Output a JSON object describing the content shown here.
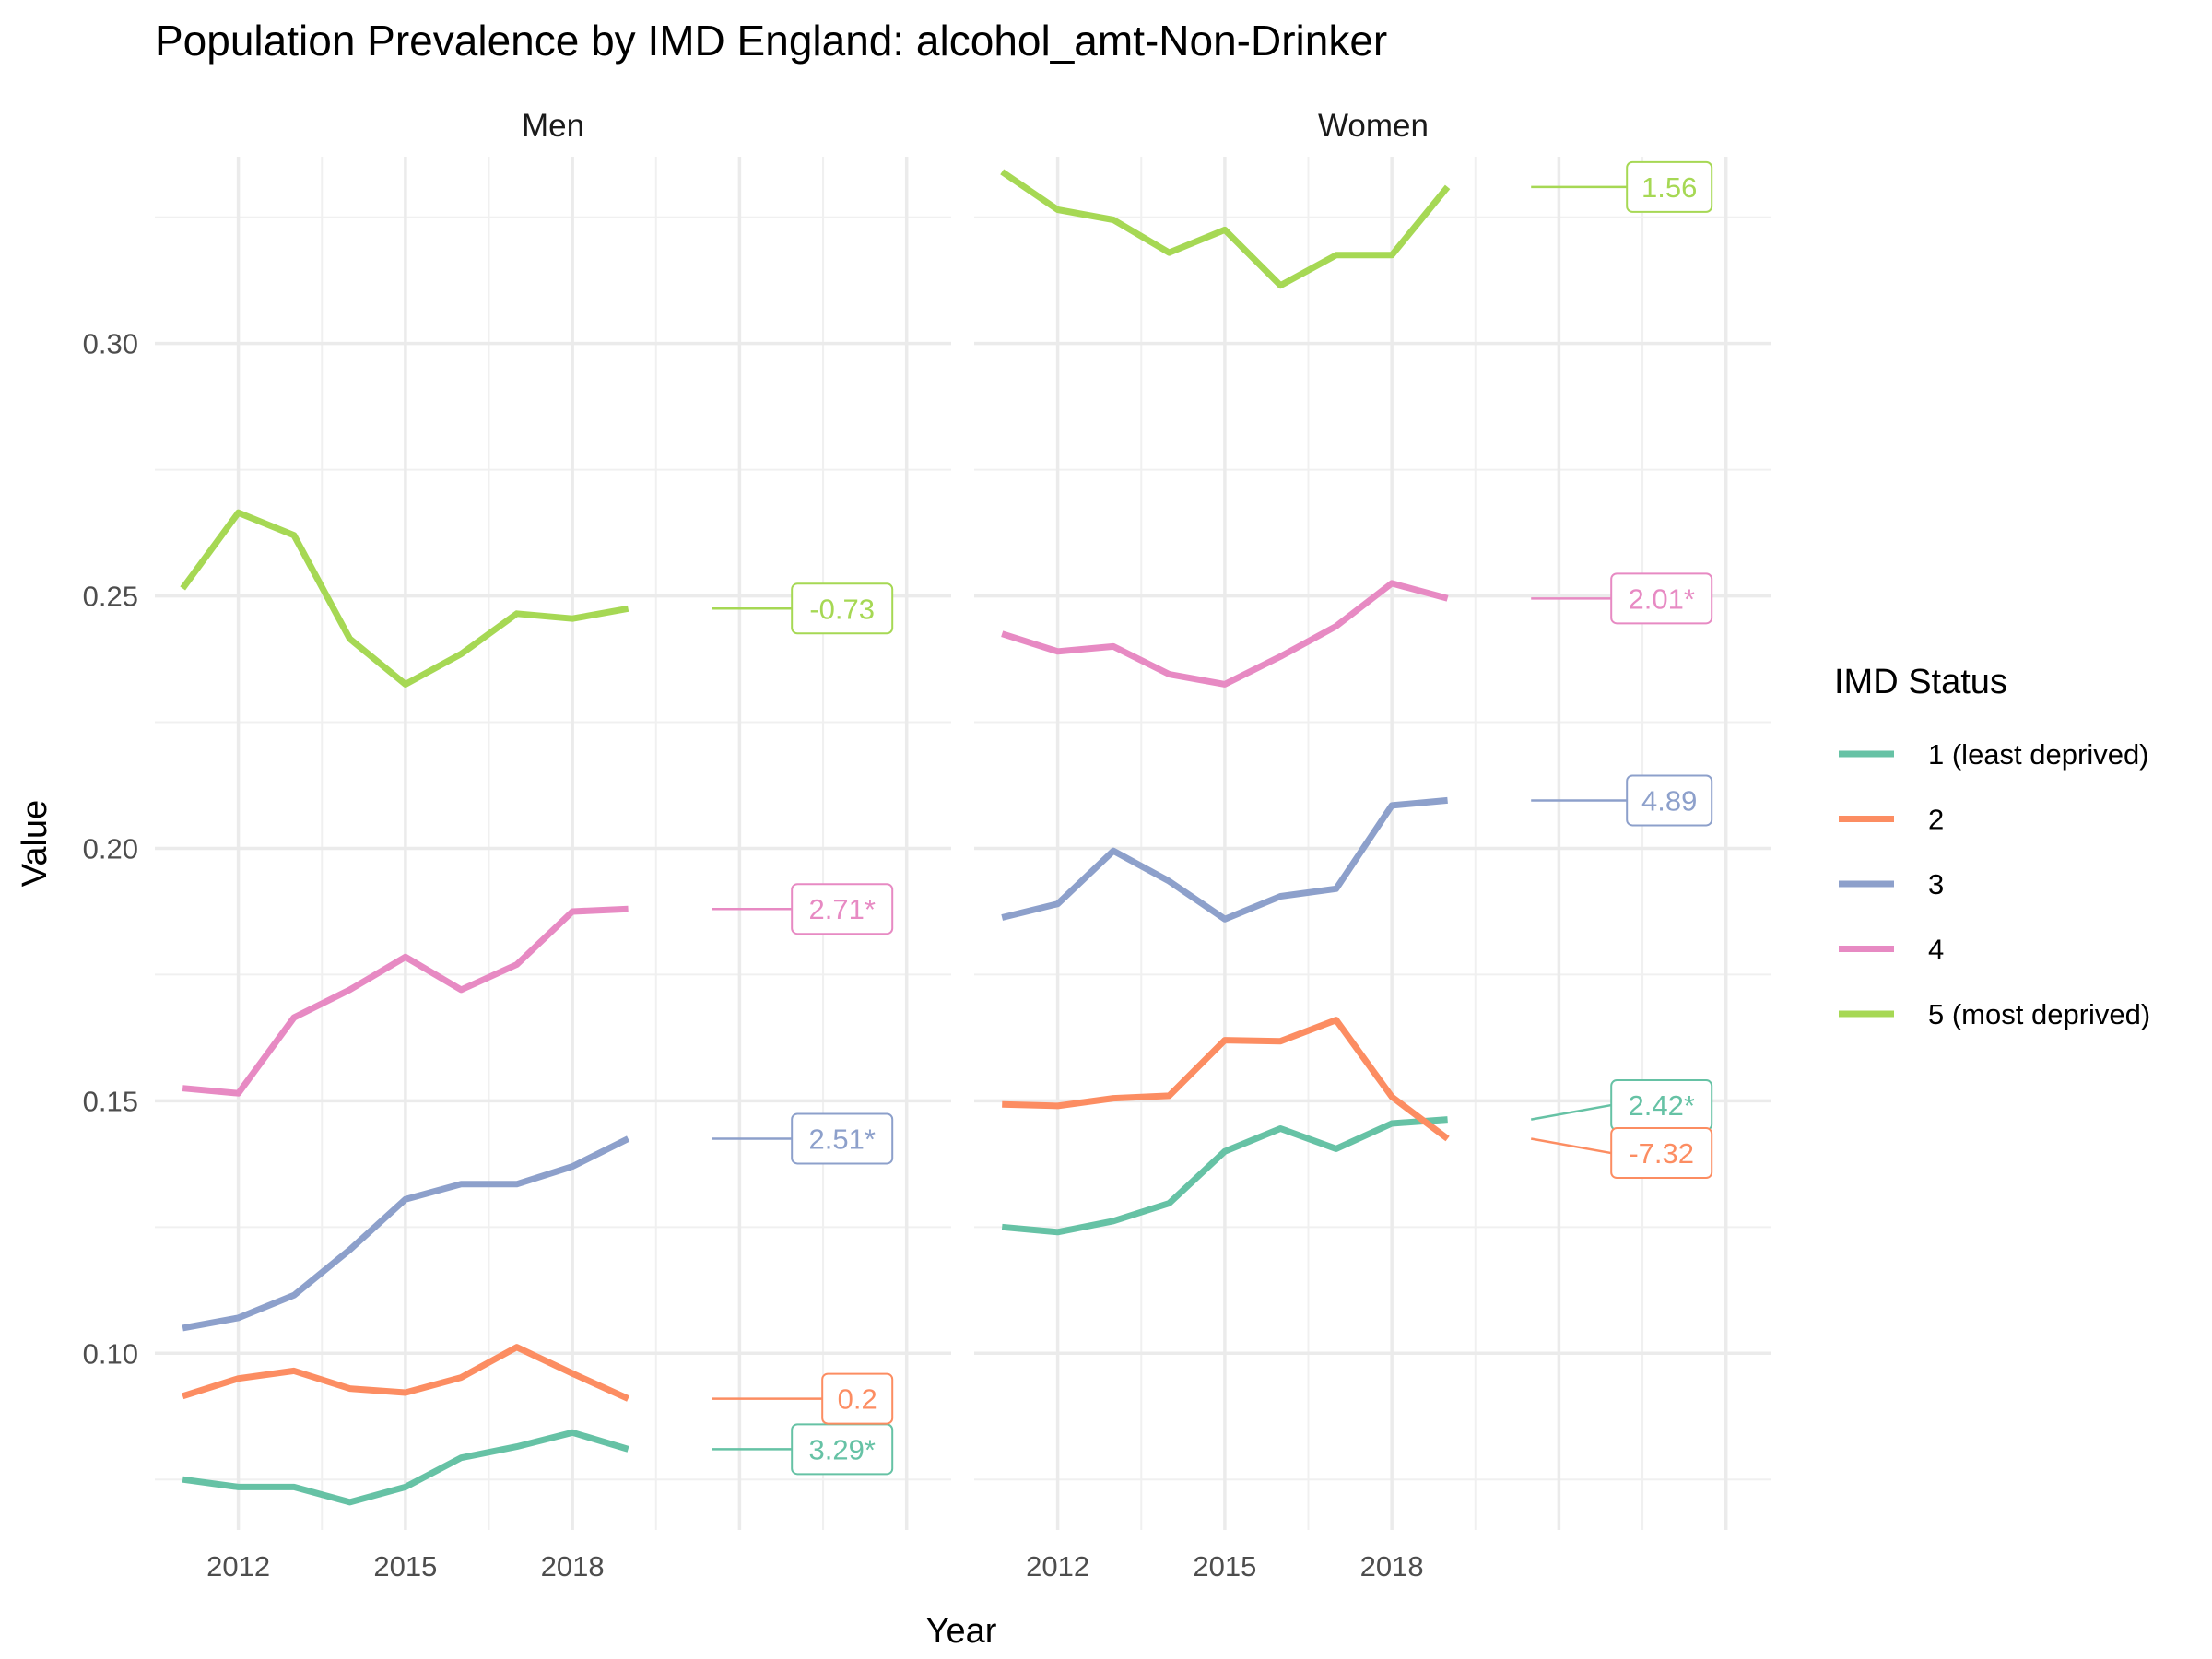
{
  "chart_data": {
    "type": "line",
    "title": "Population Prevalence by IMD England: alcohol_amt-Non-Drinker",
    "xlabel": "Year",
    "ylabel": "Value",
    "x_ticks": [
      2012,
      2015,
      2018
    ],
    "y_ticks": [
      0.1,
      0.15,
      0.2,
      0.25,
      0.3
    ],
    "y_tick_labels": [
      "0.10",
      "0.15",
      "0.20",
      "0.25",
      "0.30"
    ],
    "ylim": [
      0.065,
      0.337
    ],
    "xlim": [
      2010.5,
      2024.8
    ],
    "grid": true,
    "legend": {
      "title": "IMD Status",
      "placement": "right",
      "entries": [
        "1 (least deprived)",
        "2",
        "3",
        "4",
        "5 (most deprived)"
      ]
    },
    "colors": {
      "1 (least deprived)": "#66C2A5",
      "2": "#FC8D62",
      "3": "#8DA0CB",
      "4": "#E78AC3",
      "5 (most deprived)": "#A6D854"
    },
    "x": [
      2011,
      2012,
      2013,
      2014,
      2015,
      2016,
      2017,
      2018,
      2019
    ],
    "panels": [
      {
        "strip": "Men",
        "series": [
          {
            "name": "1 (least deprived)",
            "values": [
              0.075,
              0.0735,
              0.0735,
              0.0705,
              0.0735,
              0.0793,
              0.0815,
              0.0843,
              0.081
            ],
            "label": "3.29*"
          },
          {
            "name": "2",
            "values": [
              0.0915,
              0.095,
              0.0965,
              0.093,
              0.0922,
              0.0952,
              0.1012,
              0.096,
              0.091
            ],
            "label": "0.2"
          },
          {
            "name": "3",
            "values": [
              0.105,
              0.107,
              0.1115,
              0.1205,
              0.1305,
              0.1335,
              0.1335,
              0.137,
              0.1425
            ],
            "label": "2.51*"
          },
          {
            "name": "4",
            "values": [
              0.1525,
              0.1515,
              0.1665,
              0.172,
              0.1785,
              0.172,
              0.177,
              0.1875,
              0.188
            ],
            "label": "2.71*"
          },
          {
            "name": "5 (most deprived)",
            "values": [
              0.2515,
              0.2665,
              0.262,
              0.2415,
              0.2325,
              0.2385,
              0.2465,
              0.2455,
              0.2475
            ],
            "label": "-0.73"
          }
        ]
      },
      {
        "strip": "Women",
        "series": [
          {
            "name": "1 (least deprived)",
            "values": [
              0.125,
              0.124,
              0.1262,
              0.1297,
              0.14,
              0.1445,
              0.1405,
              0.1455,
              0.1463
            ],
            "label": "2.42*"
          },
          {
            "name": "2",
            "values": [
              0.1493,
              0.149,
              0.1505,
              0.151,
              0.162,
              0.1618,
              0.166,
              0.1508,
              0.1425
            ],
            "label": "-7.32"
          },
          {
            "name": "3",
            "values": [
              0.1863,
              0.189,
              0.1995,
              0.1935,
              0.186,
              0.1905,
              0.192,
              0.2085,
              0.2095
            ],
            "label": "4.89"
          },
          {
            "name": "4",
            "values": [
              0.2425,
              0.239,
              0.24,
              0.2345,
              0.2325,
              0.238,
              0.244,
              0.2525,
              0.2495
            ],
            "label": "2.01*"
          },
          {
            "name": "5 (most deprived)",
            "values": [
              0.334,
              0.3265,
              0.3245,
              0.318,
              0.3225,
              0.3115,
              0.3175,
              0.3175,
              0.331
            ],
            "label": "1.56"
          }
        ]
      }
    ]
  }
}
